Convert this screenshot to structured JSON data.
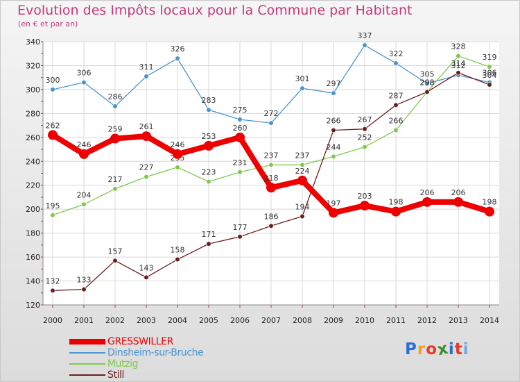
{
  "header": {
    "title": "Evolution des Impôts locaux pour la Commune par Habitant",
    "subtitle": "(en € et par an)"
  },
  "logo": {
    "text": "Proxiti",
    "letter_colors": [
      "#2a6fd8",
      "#f0a21a",
      "#e83a2c",
      "#3a8f2c",
      "#2a6fd8",
      "#e83a2c",
      "#6aa8e8"
    ]
  },
  "chart_data": {
    "type": "line",
    "title": "Evolution des Impôts locaux pour la Commune par Habitant",
    "subtitle": "(en € et par an)",
    "xlabel": "",
    "ylabel": "",
    "x": [
      "2000",
      "2001",
      "2002",
      "2003",
      "2004",
      "2005",
      "2006",
      "2007",
      "2008",
      "2009",
      "2010",
      "2011",
      "2012",
      "2013",
      "2014"
    ],
    "ylim": [
      120,
      340
    ],
    "yticks": [
      120,
      140,
      160,
      180,
      200,
      220,
      240,
      260,
      280,
      300,
      320,
      340
    ],
    "grid": true,
    "legend_position": "bottom-left",
    "series": [
      {
        "name": "GRESSWILLER",
        "color": "#ee0000",
        "emphasis": true,
        "values": [
          262,
          246,
          259,
          261,
          246,
          253,
          260,
          218,
          224,
          197,
          203,
          198,
          206,
          206,
          198
        ]
      },
      {
        "name": "Dinsheim-sur-Bruche",
        "color": "#4a93cf",
        "emphasis": false,
        "values": [
          300,
          306,
          286,
          311,
          326,
          283,
          275,
          272,
          301,
          297,
          337,
          322,
          305,
          312,
          306
        ]
      },
      {
        "name": "Mutzig",
        "color": "#7ec94a",
        "emphasis": false,
        "values": [
          195,
          204,
          217,
          227,
          235,
          223,
          231,
          237,
          237,
          244,
          252,
          266,
          298,
          328,
          319
        ]
      },
      {
        "name": "Still",
        "color": "#6b1e1e",
        "emphasis": false,
        "values": [
          132,
          133,
          157,
          143,
          158,
          171,
          177,
          186,
          194,
          266,
          267,
          287,
          298,
          314,
          304
        ]
      }
    ]
  }
}
